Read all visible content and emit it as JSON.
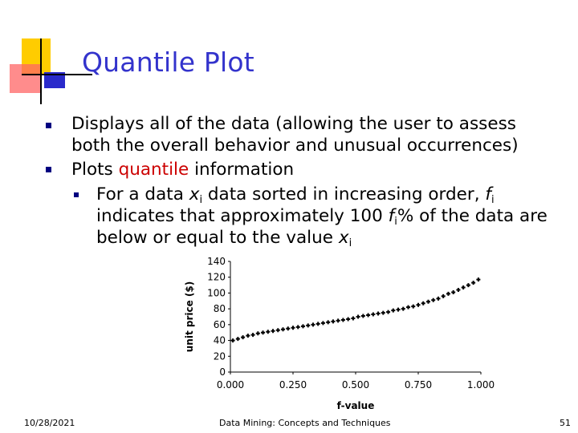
{
  "slide": {
    "title": "Quantile Plot",
    "bullets": {
      "b1_line1": "Displays all of the data (allowing the user to assess",
      "b1_line2": "both the overall behavior and unusual occurrences)",
      "b2_prefix": "Plots ",
      "b2_red": "quantile",
      "b2_suffix": " information",
      "b3_l1_a": "For a data ",
      "b3_l1_x": "x",
      "b3_l1_i": "i",
      "b3_l1_b": " data sorted in increasing order, ",
      "b3_l1_f": "f",
      "b3_l1_fi": "i",
      "b3_l2_a": "indicates that approximately 100 ",
      "b3_l2_f": "f",
      "b3_l2_fi": "i",
      "b3_l2_b": "% of the data are",
      "b3_l3_a": "below or equal to the value ",
      "b3_l3_x": "x",
      "b3_l3_i": "i"
    },
    "footer": {
      "date": "10/28/2021",
      "center": "Data Mining: Concepts and Techniques",
      "page": "51"
    },
    "colors": {
      "title": "#3333cc",
      "bullet": "#000080",
      "highlight": "#cc0000",
      "deco_yellow": "#ffcc00",
      "deco_red": "#ff6666",
      "deco_blue": "#2a2acb"
    }
  },
  "chart_data": {
    "type": "scatter",
    "xlabel": "f-value",
    "ylabel": "unit price ($)",
    "xlim": [
      0,
      1
    ],
    "ylim": [
      0,
      140
    ],
    "xticks": [
      "0.000",
      "0.250",
      "0.500",
      "0.750",
      "1.000"
    ],
    "yticks": [
      "0",
      "20",
      "40",
      "60",
      "80",
      "100",
      "120",
      "140"
    ],
    "x": [
      0.01,
      0.03,
      0.05,
      0.07,
      0.09,
      0.11,
      0.13,
      0.15,
      0.17,
      0.19,
      0.21,
      0.23,
      0.25,
      0.27,
      0.29,
      0.31,
      0.33,
      0.35,
      0.37,
      0.39,
      0.41,
      0.43,
      0.45,
      0.47,
      0.49,
      0.51,
      0.53,
      0.55,
      0.57,
      0.59,
      0.61,
      0.63,
      0.65,
      0.67,
      0.69,
      0.71,
      0.73,
      0.75,
      0.77,
      0.79,
      0.81,
      0.83,
      0.85,
      0.87,
      0.89,
      0.91,
      0.93,
      0.95,
      0.97,
      0.99
    ],
    "y": [
      40,
      42,
      44,
      46,
      47,
      49,
      50,
      51,
      52,
      53,
      54,
      55,
      56,
      57,
      58,
      59,
      60,
      61,
      62,
      63,
      64,
      65,
      66,
      67,
      68,
      70,
      71,
      72,
      73,
      74,
      75,
      76,
      78,
      79,
      80,
      82,
      83,
      85,
      87,
      89,
      91,
      93,
      96,
      99,
      101,
      104,
      107,
      110,
      113,
      117
    ],
    "grid": false,
    "legend": "none"
  }
}
